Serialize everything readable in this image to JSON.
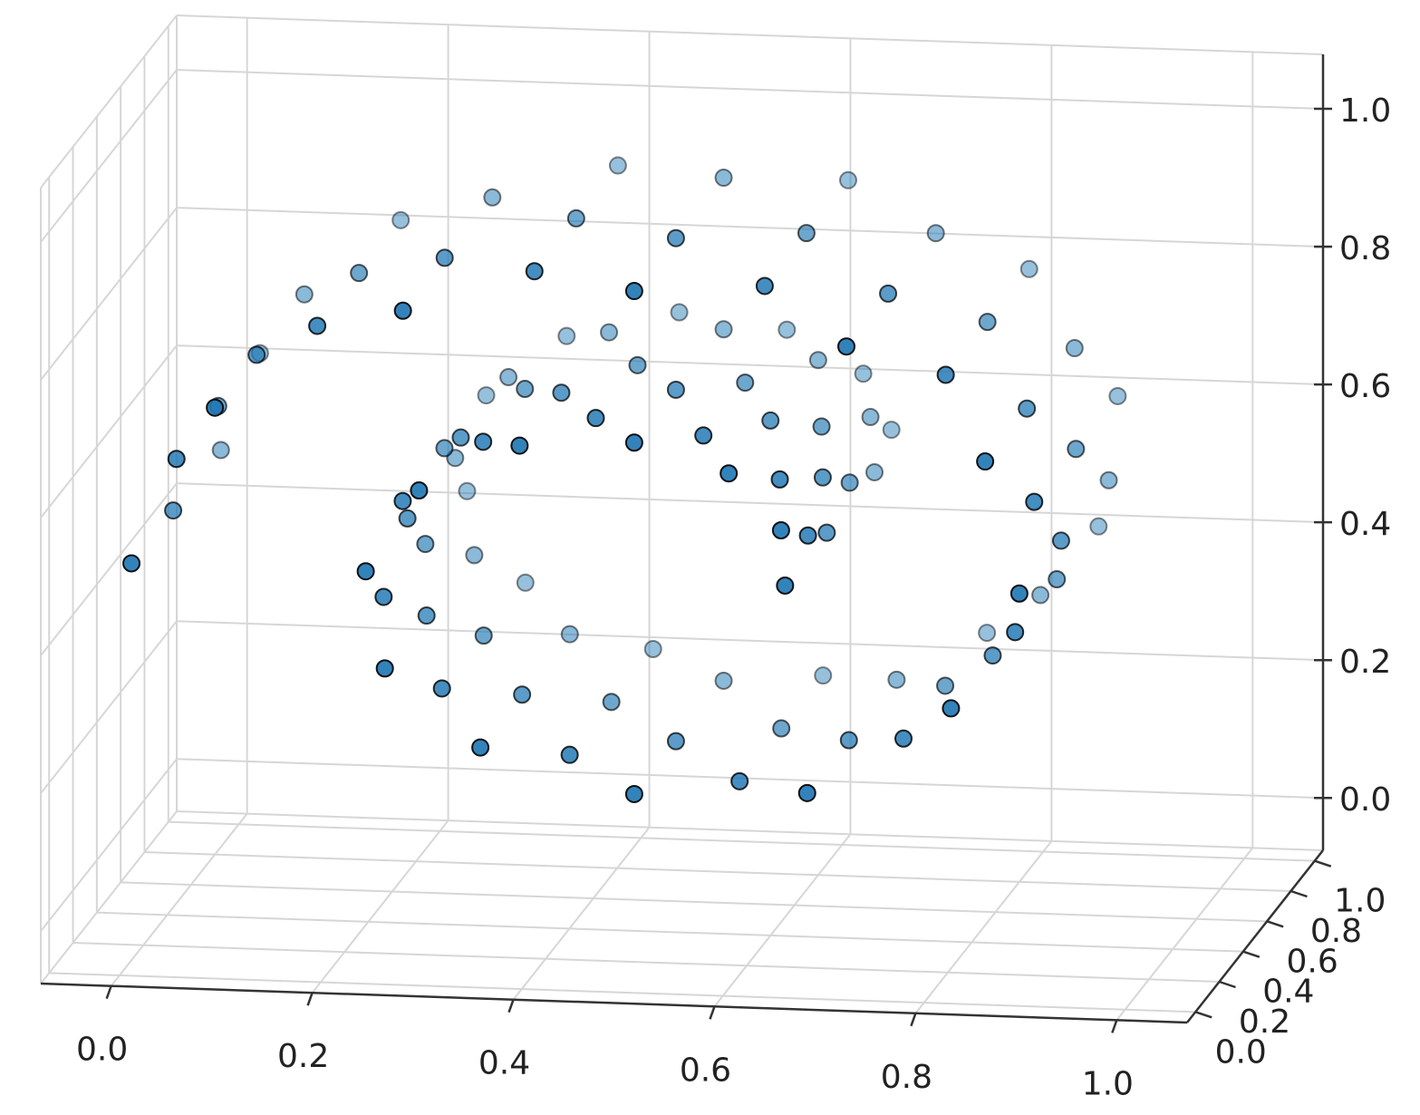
{
  "chart_data": {
    "type": "scatter3d",
    "color": "#1f77b4",
    "edgecolor": "#000000",
    "grid": true,
    "xlim": [
      -0.07,
      1.07
    ],
    "ylim": [
      -0.07,
      1.07
    ],
    "zlim": [
      -0.076,
      1.079
    ],
    "xticks": [
      {
        "value": 0,
        "label": "0.0"
      },
      0.2,
      0.4,
      0.6,
      0.8,
      {
        "value": 1,
        "label": "1.0"
      }
    ],
    "yticks": [
      {
        "value": 0,
        "label": "0.0"
      },
      0.2,
      0.4,
      0.6,
      0.8,
      {
        "value": 1,
        "label": "1.0"
      }
    ],
    "zticks": [
      {
        "value": 0,
        "label": "0.0"
      },
      0.2,
      0.4,
      0.6,
      0.8,
      {
        "value": 1,
        "label": "1.0"
      }
    ],
    "x": [
      0.65,
      0.65,
      0.65,
      0.655,
      0.655,
      0.655,
      0.646,
      0.646,
      0.646,
      0.627,
      0.627,
      0.627,
      0.594,
      0.594,
      0.594,
      0.551,
      0.551,
      0.551,
      0.5,
      0.5,
      0.5,
      0.444,
      0.444,
      0.444,
      0.386,
      0.386,
      0.386,
      0.332,
      0.332,
      0.332,
      0.286,
      0.286,
      0.286,
      0.252,
      0.252,
      0.252,
      0.233,
      0.233,
      0.233,
      0.233,
      0.233,
      0.233,
      0.252,
      0.252,
      0.252,
      0.291,
      0.291,
      0.291,
      0.347,
      0.347,
      0.347,
      0.418,
      0.418,
      0.418,
      0.5,
      0.5,
      0.5,
      0.587,
      0.587,
      0.587,
      0.672,
      0.672,
      0.672,
      0.75,
      0.75,
      0.75,
      0.815,
      0.815,
      0.815,
      0.861,
      0.861,
      0.861,
      0.883,
      0.883,
      0.883,
      0.88,
      0.88,
      0.88,
      0.849,
      0.849,
      0.849,
      0.792,
      0.792,
      0.792,
      0.711,
      0.711,
      0.711,
      0.612,
      0.612,
      0.612,
      0.5,
      0.5,
      0.5,
      0.383,
      0.383,
      0.383,
      0.27,
      0.27,
      0.27,
      0.167,
      0.167,
      0.167,
      0.083,
      0.083,
      0.083,
      0.027,
      0.027,
      0.027,
      0.0,
      0.0,
      0.0
    ],
    "y": [
      0.1,
      0.45,
      0.85,
      0.25,
      0.6,
      0.95,
      0.1,
      0.45,
      0.85,
      0.25,
      0.6,
      0.95,
      0.1,
      0.45,
      0.85,
      0.25,
      0.6,
      0.95,
      0.1,
      0.45,
      0.85,
      0.25,
      0.6,
      0.95,
      0.1,
      0.45,
      0.85,
      0.25,
      0.6,
      0.95,
      0.1,
      0.45,
      0.85,
      0.25,
      0.6,
      0.95,
      0.1,
      0.45,
      0.85,
      0.25,
      0.6,
      0.95,
      0.1,
      0.45,
      0.85,
      0.25,
      0.6,
      0.95,
      0.1,
      0.45,
      0.85,
      0.25,
      0.6,
      0.95,
      0.1,
      0.45,
      0.85,
      0.25,
      0.6,
      0.95,
      0.1,
      0.45,
      0.85,
      0.25,
      0.6,
      0.95,
      0.1,
      0.45,
      0.85,
      0.25,
      0.6,
      0.95,
      0.1,
      0.45,
      0.85,
      0.25,
      0.6,
      0.95,
      0.1,
      0.45,
      0.85,
      0.25,
      0.6,
      0.95,
      0.1,
      0.45,
      0.85,
      0.25,
      0.6,
      0.95,
      0.1,
      0.45,
      0.85,
      0.25,
      0.6,
      0.95,
      0.1,
      0.45,
      0.85,
      0.25,
      0.6,
      0.95,
      0.1,
      0.45,
      0.85,
      0.25,
      0.6,
      0.95,
      0.1,
      0.45,
      0.85
    ],
    "z": [
      0.5,
      0.5,
      0.5,
      0.54,
      0.54,
      0.54,
      0.58,
      0.58,
      0.58,
      0.62,
      0.62,
      0.62,
      0.66,
      0.66,
      0.66,
      0.68,
      0.68,
      0.68,
      0.7,
      0.7,
      0.7,
      0.7,
      0.7,
      0.7,
      0.69,
      0.69,
      0.69,
      0.66,
      0.66,
      0.66,
      0.62,
      0.62,
      0.62,
      0.57,
      0.57,
      0.57,
      0.5,
      0.5,
      0.5,
      0.43,
      0.43,
      0.43,
      0.36,
      0.36,
      0.36,
      0.3,
      0.3,
      0.3,
      0.25,
      0.25,
      0.25,
      0.21,
      0.21,
      0.21,
      0.19,
      0.19,
      0.19,
      0.18,
      0.18,
      0.18,
      0.2,
      0.2,
      0.2,
      0.25,
      0.25,
      0.25,
      0.33,
      0.33,
      0.33,
      0.41,
      0.41,
      0.41,
      0.5,
      0.5,
      0.5,
      0.6,
      0.6,
      0.6,
      0.69,
      0.69,
      0.69,
      0.78,
      0.78,
      0.78,
      0.85,
      0.85,
      0.85,
      0.9,
      0.9,
      0.9,
      0.92,
      0.92,
      0.92,
      0.91,
      0.91,
      0.91,
      0.88,
      0.88,
      0.88,
      0.82,
      0.82,
      0.82,
      0.73,
      0.73,
      0.73,
      0.62,
      0.62,
      0.62,
      0.5,
      0.5,
      0.5
    ]
  }
}
